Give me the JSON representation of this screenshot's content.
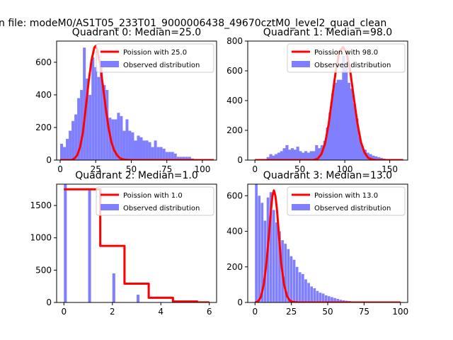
{
  "figure": {
    "suptitle": "n file: modeM0/AS1T05_233T01_9000006438_49670cztM0_level2_quad_clean"
  },
  "colors": {
    "poisson": "#ff0000",
    "observed": "#8080ff",
    "axis": "#000000"
  },
  "chart_data": [
    {
      "type": "bar+line",
      "title": "Quadrant 0: Median=25.0",
      "xlim": [
        -2.5,
        110
      ],
      "ylim": [
        0,
        730
      ],
      "xticks": [
        0,
        25,
        50,
        75,
        100
      ],
      "yticks": [
        0,
        200,
        400,
        600
      ],
      "legend": [
        "Poission with 25.0",
        "Observed distribution"
      ],
      "legend_position": "upper-right",
      "observed": {
        "bin_width": 2,
        "bins": [
          [
            0,
            100
          ],
          [
            2,
            80
          ],
          [
            4,
            130
          ],
          [
            6,
            180
          ],
          [
            8,
            240
          ],
          [
            10,
            280
          ],
          [
            12,
            380
          ],
          [
            14,
            430
          ],
          [
            16,
            690
          ],
          [
            18,
            500
          ],
          [
            20,
            400
          ],
          [
            22,
            630
          ],
          [
            24,
            570
          ],
          [
            26,
            510
          ],
          [
            28,
            580
          ],
          [
            30,
            460
          ],
          [
            32,
            430
          ],
          [
            34,
            260
          ],
          [
            36,
            250
          ],
          [
            38,
            250
          ],
          [
            40,
            290
          ],
          [
            42,
            270
          ],
          [
            44,
            180
          ],
          [
            46,
            250
          ],
          [
            48,
            180
          ],
          [
            50,
            170
          ],
          [
            52,
            120
          ],
          [
            54,
            150
          ],
          [
            56,
            140
          ],
          [
            58,
            120
          ],
          [
            60,
            120
          ],
          [
            62,
            110
          ],
          [
            64,
            80
          ],
          [
            66,
            120
          ],
          [
            68,
            80
          ],
          [
            70,
            80
          ],
          [
            72,
            70
          ],
          [
            74,
            50
          ],
          [
            76,
            50
          ],
          [
            78,
            50
          ],
          [
            80,
            40
          ],
          [
            82,
            20
          ],
          [
            84,
            20
          ],
          [
            86,
            20
          ],
          [
            88,
            20
          ],
          [
            90,
            20
          ],
          [
            92,
            10
          ]
        ]
      },
      "poisson": {
        "label": "Poission with 25.0",
        "points": [
          [
            0,
            0
          ],
          [
            8,
            0
          ],
          [
            10,
            10
          ],
          [
            12,
            30
          ],
          [
            14,
            80
          ],
          [
            16,
            170
          ],
          [
            18,
            320
          ],
          [
            20,
            480
          ],
          [
            22,
            610
          ],
          [
            24,
            690
          ],
          [
            25,
            700
          ],
          [
            26,
            680
          ],
          [
            28,
            590
          ],
          [
            30,
            460
          ],
          [
            32,
            320
          ],
          [
            34,
            200
          ],
          [
            36,
            110
          ],
          [
            38,
            60
          ],
          [
            40,
            30
          ],
          [
            42,
            12
          ],
          [
            44,
            5
          ],
          [
            46,
            2
          ],
          [
            50,
            0
          ],
          [
            108,
            0
          ]
        ]
      }
    },
    {
      "type": "bar+line",
      "title": "Quadrant 1: Median=98.0",
      "xlim": [
        -8,
        170
      ],
      "ylim": [
        0,
        800
      ],
      "xticks": [
        0,
        50,
        100,
        150
      ],
      "yticks": [
        0,
        200,
        400,
        600,
        800
      ],
      "legend": [
        "Poission with 98.0",
        "Observed distribution"
      ],
      "legend_position": "upper-right",
      "observed": {
        "bin_width": 3.3,
        "bins": [
          [
            13,
            20
          ],
          [
            16,
            40
          ],
          [
            19,
            30
          ],
          [
            22,
            40
          ],
          [
            25,
            50
          ],
          [
            28,
            60
          ],
          [
            31,
            80
          ],
          [
            34,
            100
          ],
          [
            37,
            70
          ],
          [
            40,
            80
          ],
          [
            43,
            70
          ],
          [
            46,
            90
          ],
          [
            49,
            60
          ],
          [
            52,
            50
          ],
          [
            55,
            60
          ],
          [
            58,
            50
          ],
          [
            61,
            60
          ],
          [
            64,
            60
          ],
          [
            67,
            100
          ],
          [
            70,
            80
          ],
          [
            73,
            100
          ],
          [
            76,
            130
          ],
          [
            79,
            220
          ],
          [
            82,
            320
          ],
          [
            85,
            450
          ],
          [
            88,
            520
          ],
          [
            91,
            540
          ],
          [
            94,
            540
          ],
          [
            97,
            700
          ],
          [
            100,
            620
          ],
          [
            103,
            520
          ],
          [
            106,
            480
          ],
          [
            109,
            380
          ],
          [
            112,
            280
          ],
          [
            115,
            160
          ],
          [
            118,
            90
          ],
          [
            121,
            70
          ],
          [
            124,
            50
          ],
          [
            127,
            40
          ],
          [
            130,
            30
          ],
          [
            133,
            25
          ],
          [
            136,
            20
          ],
          [
            139,
            15
          ],
          [
            142,
            10
          ]
        ]
      },
      "poisson": {
        "label": "Poission with 98.0",
        "points": [
          [
            0,
            0
          ],
          [
            65,
            0
          ],
          [
            70,
            10
          ],
          [
            74,
            40
          ],
          [
            78,
            110
          ],
          [
            82,
            240
          ],
          [
            86,
            420
          ],
          [
            90,
            600
          ],
          [
            94,
            730
          ],
          [
            98,
            760
          ],
          [
            102,
            720
          ],
          [
            106,
            600
          ],
          [
            110,
            420
          ],
          [
            114,
            250
          ],
          [
            118,
            120
          ],
          [
            122,
            50
          ],
          [
            126,
            15
          ],
          [
            130,
            5
          ],
          [
            135,
            0
          ],
          [
            165,
            0
          ]
        ]
      }
    },
    {
      "type": "bar+line",
      "title": "Quadrant 2: Median=1.0",
      "xlim": [
        -0.3,
        6.3
      ],
      "ylim": [
        0,
        1830
      ],
      "xticks": [
        0,
        2,
        4,
        6
      ],
      "yticks": [
        0,
        500,
        1000,
        1500
      ],
      "legend": [
        "Poission with 1.0",
        "Observed distribution"
      ],
      "legend_position": "upper-right",
      "observed": {
        "bin_width": 0.12,
        "bins": [
          [
            0,
            1830
          ],
          [
            1,
            1740
          ],
          [
            2,
            450
          ],
          [
            3,
            120
          ]
        ]
      },
      "poisson": {
        "label": "Poission with 1.0",
        "points": [
          [
            0,
            1750
          ],
          [
            1.5,
            1750
          ],
          [
            1.5,
            875
          ],
          [
            2.5,
            875
          ],
          [
            2.5,
            290
          ],
          [
            3.5,
            290
          ],
          [
            3.5,
            73
          ],
          [
            4.5,
            73
          ],
          [
            4.5,
            15
          ],
          [
            5.5,
            15
          ],
          [
            5.5,
            2
          ],
          [
            6,
            2
          ]
        ]
      }
    },
    {
      "type": "bar+line",
      "title": "Quadrant 3: Median=13.0",
      "xlim": [
        -5,
        105
      ],
      "ylim": [
        0,
        665
      ],
      "xticks": [
        0,
        25,
        50,
        75,
        100
      ],
      "yticks": [
        0,
        200,
        400,
        600
      ],
      "legend": [
        "Poission with 13.0",
        "Observed distribution"
      ],
      "legend_position": "upper-right",
      "observed": {
        "bin_width": 1.8,
        "bins": [
          [
            0,
            665
          ],
          [
            2,
            600
          ],
          [
            4,
            560
          ],
          [
            6,
            460
          ],
          [
            8,
            590
          ],
          [
            10,
            620
          ],
          [
            12,
            520
          ],
          [
            14,
            450
          ],
          [
            16,
            400
          ],
          [
            18,
            350
          ],
          [
            20,
            330
          ],
          [
            22,
            300
          ],
          [
            24,
            260
          ],
          [
            26,
            240
          ],
          [
            28,
            200
          ],
          [
            30,
            170
          ],
          [
            32,
            160
          ],
          [
            34,
            130
          ],
          [
            36,
            110
          ],
          [
            38,
            90
          ],
          [
            40,
            80
          ],
          [
            42,
            65
          ],
          [
            44,
            55
          ],
          [
            46,
            50
          ],
          [
            48,
            40
          ],
          [
            50,
            35
          ],
          [
            52,
            30
          ],
          [
            54,
            25
          ],
          [
            56,
            20
          ],
          [
            58,
            15
          ],
          [
            60,
            12
          ],
          [
            62,
            10
          ],
          [
            64,
            8
          ],
          [
            66,
            6
          ]
        ]
      },
      "poisson": {
        "label": "Poission with 13.0",
        "points": [
          [
            0,
            0
          ],
          [
            2,
            5
          ],
          [
            4,
            30
          ],
          [
            6,
            100
          ],
          [
            8,
            230
          ],
          [
            10,
            420
          ],
          [
            11,
            520
          ],
          [
            12,
            600
          ],
          [
            13,
            630
          ],
          [
            14,
            600
          ],
          [
            15,
            530
          ],
          [
            16,
            430
          ],
          [
            17,
            320
          ],
          [
            18,
            220
          ],
          [
            20,
            100
          ],
          [
            22,
            35
          ],
          [
            24,
            10
          ],
          [
            26,
            3
          ],
          [
            30,
            0
          ],
          [
            100,
            0
          ]
        ]
      }
    }
  ]
}
